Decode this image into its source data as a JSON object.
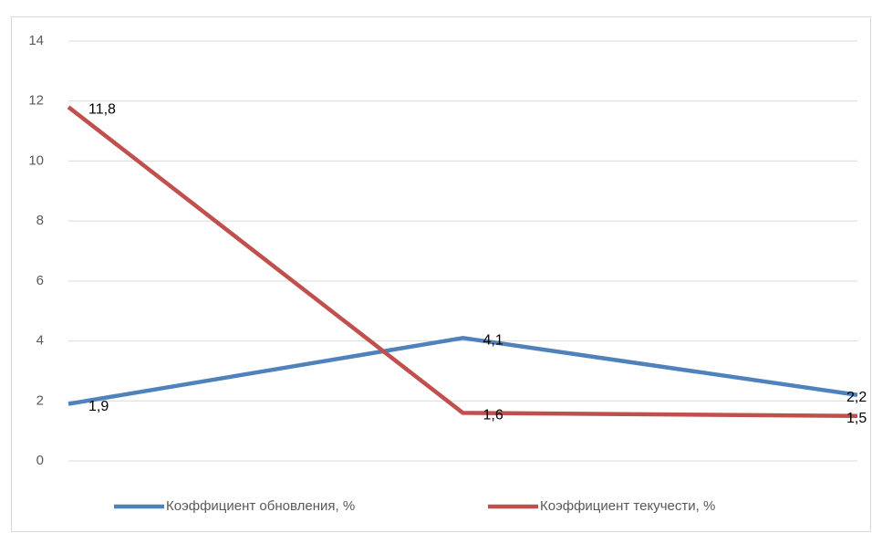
{
  "chart_data": {
    "type": "line",
    "categories": [
      null,
      null,
      null
    ],
    "series": [
      {
        "name": "Коэффициент обновления, %",
        "color": "#4f81bd",
        "values": [
          1.9,
          4.1,
          2.2
        ],
        "value_labels": [
          "1,9",
          "4,1",
          "2,2"
        ]
      },
      {
        "name": "Коэффициент текучести, %",
        "color": "#c0504d",
        "values": [
          11.8,
          1.6,
          1.5
        ],
        "value_labels": [
          "11,8",
          "1,6",
          "1,5"
        ]
      }
    ],
    "ylim": [
      0,
      14
    ],
    "yticks": [
      0,
      2,
      4,
      6,
      8,
      10,
      12,
      14
    ],
    "grid": true,
    "legend": "bottom"
  }
}
